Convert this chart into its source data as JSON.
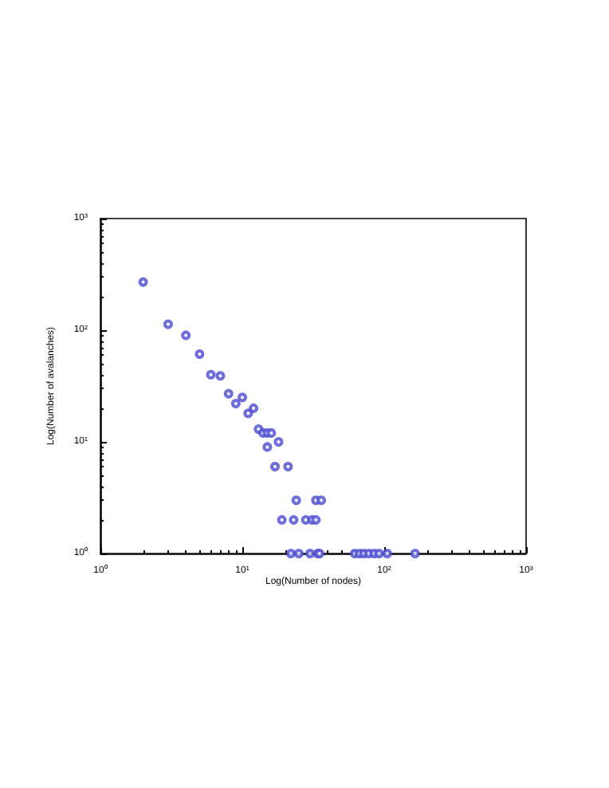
{
  "chart_data": {
    "type": "scatter",
    "xlabel": "Log(Number of nodes)",
    "ylabel": "Log(Number of avalanches)",
    "x": [
      2,
      3,
      4,
      5,
      6,
      7,
      8,
      9,
      10,
      11,
      12,
      13,
      14,
      15,
      16,
      15,
      18,
      17,
      21,
      24,
      33,
      36,
      19,
      23,
      28,
      31,
      33,
      22,
      25,
      30,
      34,
      35,
      62,
      67,
      72,
      78,
      85,
      92,
      105,
      165
    ],
    "series": [
      {
        "color": "#4b4bd2",
        "values": [
          270,
          113,
          90,
          61,
          40,
          39,
          27,
          22,
          25,
          18,
          20,
          13,
          12,
          12,
          12,
          9,
          10,
          6,
          6,
          3,
          3,
          3,
          2,
          2,
          2,
          2,
          2,
          1,
          1,
          1,
          1,
          1,
          1,
          1,
          1,
          1,
          1,
          1,
          1,
          1
        ]
      }
    ],
    "xlim": [
      1,
      1000
    ],
    "ylim": [
      1,
      1000
    ],
    "log": "xy",
    "marker": "circle",
    "grid": false,
    "xticks": [
      {
        "value": 1,
        "label": "10⁰"
      },
      {
        "value": 10,
        "label": "10¹"
      },
      {
        "value": 100,
        "label": "10²"
      },
      {
        "value": 1000,
        "label": "10³"
      }
    ],
    "yticks": [
      {
        "value": 1,
        "label": "10⁰"
      },
      {
        "value": 10,
        "label": "10¹"
      },
      {
        "value": 100,
        "label": "10²"
      },
      {
        "value": 1000,
        "label": "10³"
      }
    ]
  }
}
